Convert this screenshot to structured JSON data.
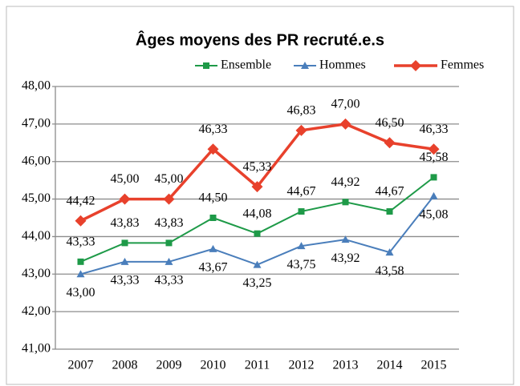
{
  "chart_data": {
    "type": "line",
    "title": "Âges moyens des PR recruté.e.s",
    "categories": [
      "2007",
      "2008",
      "2009",
      "2010",
      "2011",
      "2012",
      "2013",
      "2014",
      "2015"
    ],
    "series": [
      {
        "name": "Ensemble",
        "color": "#1e9a48",
        "marker": "square",
        "label_position": "above",
        "values": [
          43.33,
          43.83,
          43.83,
          44.5,
          44.08,
          44.67,
          44.92,
          44.67,
          45.58
        ],
        "value_labels": [
          "43,33",
          "43,83",
          "43,83",
          "44,50",
          "44,08",
          "44,67",
          "44,92",
          "44,67",
          "45,58"
        ]
      },
      {
        "name": "Hommes",
        "color": "#4a7ebb",
        "marker": "triangle",
        "label_position": "below",
        "values": [
          43.0,
          43.33,
          43.33,
          43.67,
          43.25,
          43.75,
          43.92,
          43.58,
          45.08
        ],
        "value_labels": [
          "43,00",
          "43,33",
          "43,33",
          "43,67",
          "43,25",
          "43,75",
          "43,92",
          "43,58",
          "45,08"
        ]
      },
      {
        "name": "Femmes",
        "color": "#e8412c",
        "marker": "diamond",
        "label_position": "above",
        "values": [
          44.42,
          45.0,
          45.0,
          46.33,
          45.33,
          46.83,
          47.0,
          46.5,
          46.33
        ],
        "value_labels": [
          "44,42",
          "45,00",
          "45,00",
          "46,33",
          "45,33",
          "46,83",
          "47,00",
          "46,50",
          "46,33"
        ]
      }
    ],
    "ylim": [
      41,
      48
    ],
    "yticks": [
      {
        "value": 41,
        "label": "41,00"
      },
      {
        "value": 42,
        "label": "42,00"
      },
      {
        "value": 43,
        "label": "43,00"
      },
      {
        "value": 44,
        "label": "44,00"
      },
      {
        "value": 45,
        "label": "45,00"
      },
      {
        "value": 46,
        "label": "46,00"
      },
      {
        "value": 47,
        "label": "47,00"
      },
      {
        "value": 48,
        "label": "48,00"
      }
    ],
    "grid": true,
    "legend": "top"
  }
}
